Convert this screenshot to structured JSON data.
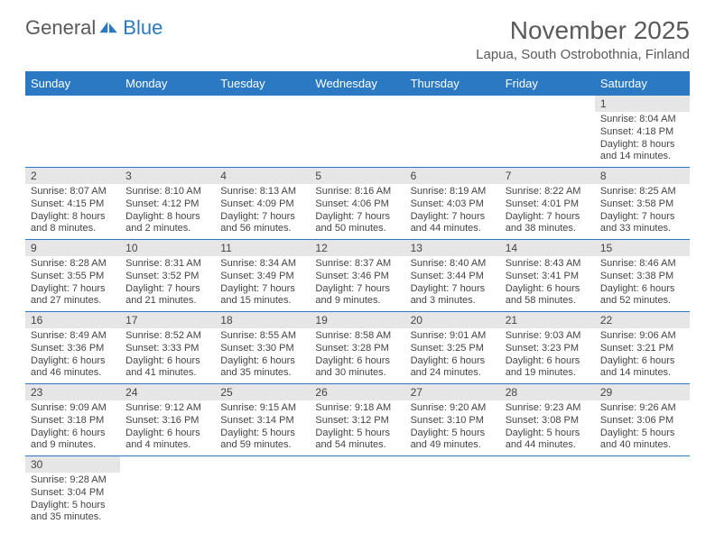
{
  "logo": {
    "text1": "General",
    "text2": "Blue"
  },
  "title": "November 2025",
  "location": "Lapua, South Ostrobothnia, Finland",
  "dayNames": [
    "Sunday",
    "Monday",
    "Tuesday",
    "Wednesday",
    "Thursday",
    "Friday",
    "Saturday"
  ],
  "colors": {
    "headerBg": "#2b79c2",
    "border": "#2b79c2",
    "dayNumBg": "#e6e6e6"
  },
  "weeks": [
    [
      null,
      null,
      null,
      null,
      null,
      null,
      {
        "n": "1",
        "sr": "Sunrise: 8:04 AM",
        "ss": "Sunset: 4:18 PM",
        "d1": "Daylight: 8 hours",
        "d2": "and 14 minutes."
      }
    ],
    [
      {
        "n": "2",
        "sr": "Sunrise: 8:07 AM",
        "ss": "Sunset: 4:15 PM",
        "d1": "Daylight: 8 hours",
        "d2": "and 8 minutes."
      },
      {
        "n": "3",
        "sr": "Sunrise: 8:10 AM",
        "ss": "Sunset: 4:12 PM",
        "d1": "Daylight: 8 hours",
        "d2": "and 2 minutes."
      },
      {
        "n": "4",
        "sr": "Sunrise: 8:13 AM",
        "ss": "Sunset: 4:09 PM",
        "d1": "Daylight: 7 hours",
        "d2": "and 56 minutes."
      },
      {
        "n": "5",
        "sr": "Sunrise: 8:16 AM",
        "ss": "Sunset: 4:06 PM",
        "d1": "Daylight: 7 hours",
        "d2": "and 50 minutes."
      },
      {
        "n": "6",
        "sr": "Sunrise: 8:19 AM",
        "ss": "Sunset: 4:03 PM",
        "d1": "Daylight: 7 hours",
        "d2": "and 44 minutes."
      },
      {
        "n": "7",
        "sr": "Sunrise: 8:22 AM",
        "ss": "Sunset: 4:01 PM",
        "d1": "Daylight: 7 hours",
        "d2": "and 38 minutes."
      },
      {
        "n": "8",
        "sr": "Sunrise: 8:25 AM",
        "ss": "Sunset: 3:58 PM",
        "d1": "Daylight: 7 hours",
        "d2": "and 33 minutes."
      }
    ],
    [
      {
        "n": "9",
        "sr": "Sunrise: 8:28 AM",
        "ss": "Sunset: 3:55 PM",
        "d1": "Daylight: 7 hours",
        "d2": "and 27 minutes."
      },
      {
        "n": "10",
        "sr": "Sunrise: 8:31 AM",
        "ss": "Sunset: 3:52 PM",
        "d1": "Daylight: 7 hours",
        "d2": "and 21 minutes."
      },
      {
        "n": "11",
        "sr": "Sunrise: 8:34 AM",
        "ss": "Sunset: 3:49 PM",
        "d1": "Daylight: 7 hours",
        "d2": "and 15 minutes."
      },
      {
        "n": "12",
        "sr": "Sunrise: 8:37 AM",
        "ss": "Sunset: 3:46 PM",
        "d1": "Daylight: 7 hours",
        "d2": "and 9 minutes."
      },
      {
        "n": "13",
        "sr": "Sunrise: 8:40 AM",
        "ss": "Sunset: 3:44 PM",
        "d1": "Daylight: 7 hours",
        "d2": "and 3 minutes."
      },
      {
        "n": "14",
        "sr": "Sunrise: 8:43 AM",
        "ss": "Sunset: 3:41 PM",
        "d1": "Daylight: 6 hours",
        "d2": "and 58 minutes."
      },
      {
        "n": "15",
        "sr": "Sunrise: 8:46 AM",
        "ss": "Sunset: 3:38 PM",
        "d1": "Daylight: 6 hours",
        "d2": "and 52 minutes."
      }
    ],
    [
      {
        "n": "16",
        "sr": "Sunrise: 8:49 AM",
        "ss": "Sunset: 3:36 PM",
        "d1": "Daylight: 6 hours",
        "d2": "and 46 minutes."
      },
      {
        "n": "17",
        "sr": "Sunrise: 8:52 AM",
        "ss": "Sunset: 3:33 PM",
        "d1": "Daylight: 6 hours",
        "d2": "and 41 minutes."
      },
      {
        "n": "18",
        "sr": "Sunrise: 8:55 AM",
        "ss": "Sunset: 3:30 PM",
        "d1": "Daylight: 6 hours",
        "d2": "and 35 minutes."
      },
      {
        "n": "19",
        "sr": "Sunrise: 8:58 AM",
        "ss": "Sunset: 3:28 PM",
        "d1": "Daylight: 6 hours",
        "d2": "and 30 minutes."
      },
      {
        "n": "20",
        "sr": "Sunrise: 9:01 AM",
        "ss": "Sunset: 3:25 PM",
        "d1": "Daylight: 6 hours",
        "d2": "and 24 minutes."
      },
      {
        "n": "21",
        "sr": "Sunrise: 9:03 AM",
        "ss": "Sunset: 3:23 PM",
        "d1": "Daylight: 6 hours",
        "d2": "and 19 minutes."
      },
      {
        "n": "22",
        "sr": "Sunrise: 9:06 AM",
        "ss": "Sunset: 3:21 PM",
        "d1": "Daylight: 6 hours",
        "d2": "and 14 minutes."
      }
    ],
    [
      {
        "n": "23",
        "sr": "Sunrise: 9:09 AM",
        "ss": "Sunset: 3:18 PM",
        "d1": "Daylight: 6 hours",
        "d2": "and 9 minutes."
      },
      {
        "n": "24",
        "sr": "Sunrise: 9:12 AM",
        "ss": "Sunset: 3:16 PM",
        "d1": "Daylight: 6 hours",
        "d2": "and 4 minutes."
      },
      {
        "n": "25",
        "sr": "Sunrise: 9:15 AM",
        "ss": "Sunset: 3:14 PM",
        "d1": "Daylight: 5 hours",
        "d2": "and 59 minutes."
      },
      {
        "n": "26",
        "sr": "Sunrise: 9:18 AM",
        "ss": "Sunset: 3:12 PM",
        "d1": "Daylight: 5 hours",
        "d2": "and 54 minutes."
      },
      {
        "n": "27",
        "sr": "Sunrise: 9:20 AM",
        "ss": "Sunset: 3:10 PM",
        "d1": "Daylight: 5 hours",
        "d2": "and 49 minutes."
      },
      {
        "n": "28",
        "sr": "Sunrise: 9:23 AM",
        "ss": "Sunset: 3:08 PM",
        "d1": "Daylight: 5 hours",
        "d2": "and 44 minutes."
      },
      {
        "n": "29",
        "sr": "Sunrise: 9:26 AM",
        "ss": "Sunset: 3:06 PM",
        "d1": "Daylight: 5 hours",
        "d2": "and 40 minutes."
      }
    ],
    [
      {
        "n": "30",
        "sr": "Sunrise: 9:28 AM",
        "ss": "Sunset: 3:04 PM",
        "d1": "Daylight: 5 hours",
        "d2": "and 35 minutes."
      },
      null,
      null,
      null,
      null,
      null,
      null
    ]
  ]
}
